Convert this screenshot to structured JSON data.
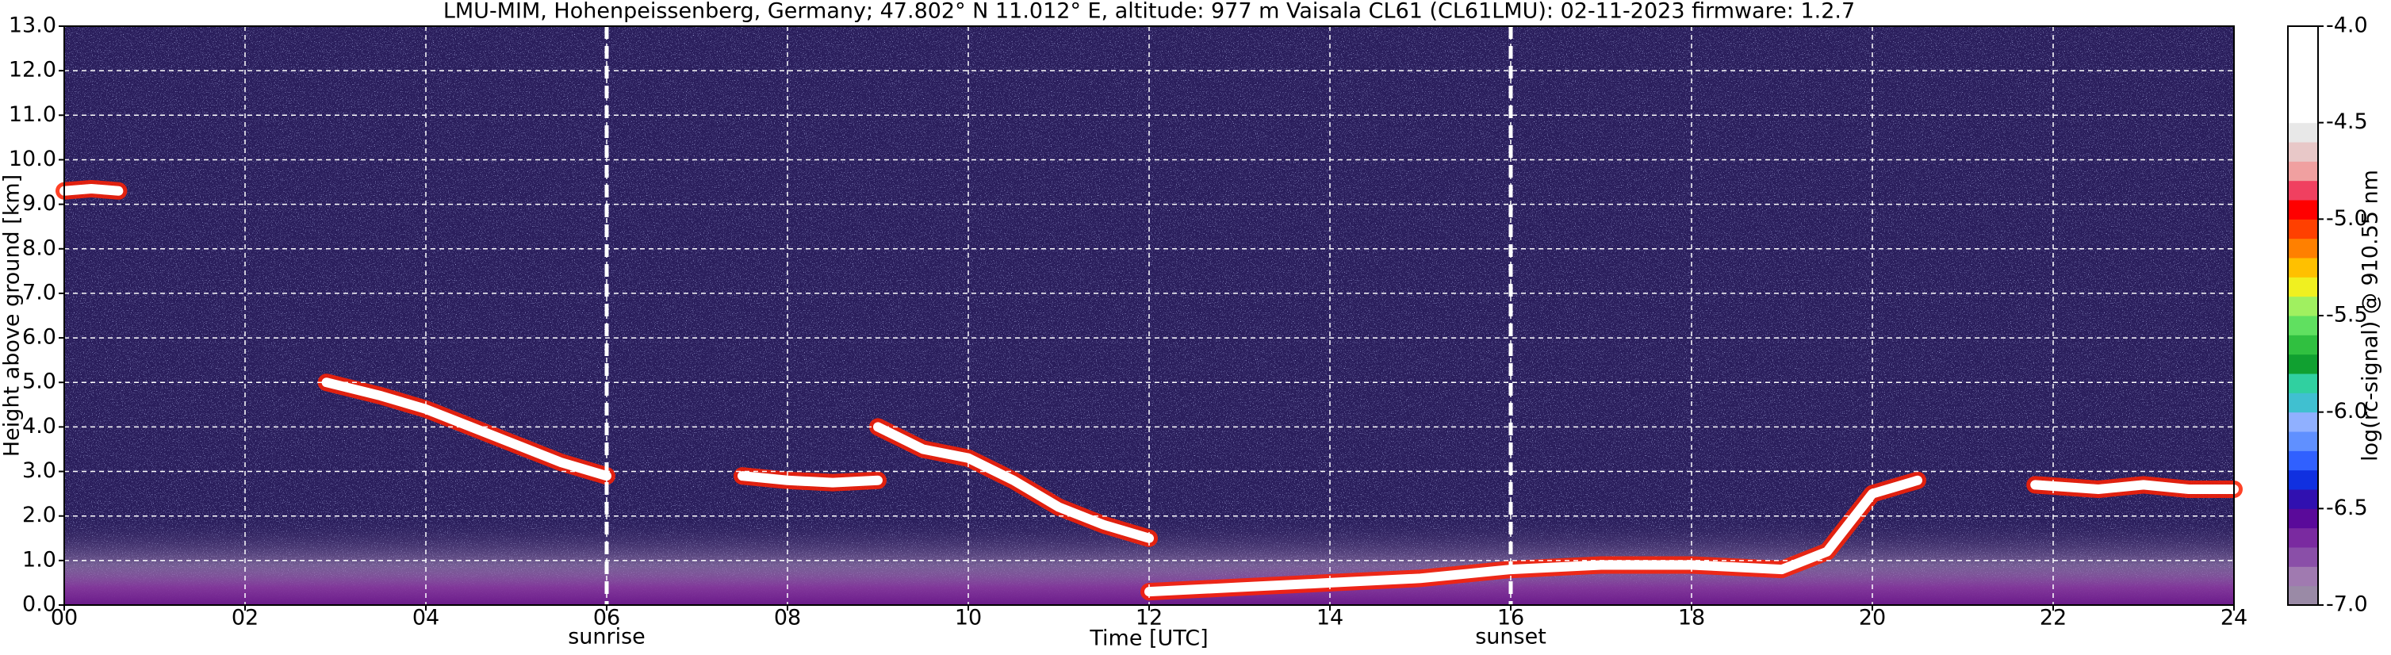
{
  "chart_data": {
    "type": "heatmap",
    "title": "LMU-MIM, Hohenpeissenberg, Germany; 47.802° N 11.012° E, altitude: 977 m    Vaisala CL61 (CL61LMU): 02-11-2023    firmware: 1.2.7",
    "x_label": "Time [UTC]",
    "y_label": "Height above ground [km]",
    "xlim": [
      0,
      24
    ],
    "xticks": [
      {
        "value": 0,
        "label": "00"
      },
      {
        "value": 2,
        "label": "02"
      },
      {
        "value": 4,
        "label": "04"
      },
      {
        "value": 6,
        "label": "06"
      },
      {
        "value": 8,
        "label": "08"
      },
      {
        "value": 10,
        "label": "10"
      },
      {
        "value": 12,
        "label": "12"
      },
      {
        "value": 14,
        "label": "14"
      },
      {
        "value": 16,
        "label": "16"
      },
      {
        "value": 18,
        "label": "18"
      },
      {
        "value": 20,
        "label": "20"
      },
      {
        "value": 22,
        "label": "22"
      },
      {
        "value": 24,
        "label": "24"
      }
    ],
    "ylim": [
      0,
      13
    ],
    "yticks": [
      {
        "value": 0,
        "label": "0.0"
      },
      {
        "value": 1,
        "label": "1.0"
      },
      {
        "value": 2,
        "label": "2.0"
      },
      {
        "value": 3,
        "label": "3.0"
      },
      {
        "value": 4,
        "label": "4.0"
      },
      {
        "value": 5,
        "label": "5.0"
      },
      {
        "value": 6,
        "label": "6.0"
      },
      {
        "value": 7,
        "label": "7.0"
      },
      {
        "value": 8,
        "label": "8.0"
      },
      {
        "value": 9,
        "label": "9.0"
      },
      {
        "value": 10,
        "label": "10.0"
      },
      {
        "value": 11,
        "label": "11.0"
      },
      {
        "value": 12,
        "label": "12.0"
      },
      {
        "value": 13,
        "label": "13.0"
      }
    ],
    "grid": true,
    "annotations": [
      {
        "x": 6,
        "label": "sunrise"
      },
      {
        "x": 16,
        "label": "sunset"
      }
    ],
    "series": [
      {
        "color": "#ffffff",
        "x": [
          0,
          0.3,
          0.6
        ],
        "values": [
          9.3,
          9.35,
          9.3
        ]
      },
      {
        "color": "#ffffff",
        "x": [
          2.9,
          3.5,
          4,
          4.5,
          5,
          5.5,
          6
        ],
        "values": [
          5.0,
          4.7,
          4.4,
          4.0,
          3.6,
          3.2,
          2.9
        ]
      },
      {
        "color": "#ffffff",
        "x": [
          7.5,
          8,
          8.5,
          9
        ],
        "values": [
          2.9,
          2.8,
          2.75,
          2.8
        ]
      },
      {
        "color": "#ffffff",
        "x": [
          9,
          9.5,
          10,
          10.5,
          11,
          11.5,
          12
        ],
        "values": [
          4.0,
          3.5,
          3.3,
          2.8,
          2.2,
          1.8,
          1.5
        ]
      },
      {
        "color": "#ffffff",
        "x": [
          12,
          13,
          14,
          15,
          16,
          17,
          18,
          19,
          19.5,
          20,
          20.5
        ],
        "values": [
          0.3,
          0.4,
          0.5,
          0.6,
          0.8,
          0.9,
          0.9,
          0.8,
          1.2,
          2.5,
          2.8
        ]
      },
      {
        "color": "#ffffff",
        "x": [
          21.8,
          22.5,
          23,
          23.5,
          24
        ],
        "values": [
          2.7,
          2.6,
          2.7,
          2.6,
          2.6
        ]
      }
    ],
    "colorbar": {
      "label": "log(rc-signal) @ 910.55 nm",
      "lim": [
        -7,
        -4
      ],
      "ticks": [
        {
          "value": -4,
          "label": "-4.0"
        },
        {
          "value": -4.5,
          "label": "-4.5"
        },
        {
          "value": -5,
          "label": "-5.0"
        },
        {
          "value": -5.5,
          "label": "-5.5"
        },
        {
          "value": -6,
          "label": "-6.0"
        },
        {
          "value": -6.5,
          "label": "-6.5"
        },
        {
          "value": -7,
          "label": "-7.0"
        }
      ],
      "colors": [
        "#9a8aa6",
        "#a07ab0",
        "#8a4fa8",
        "#7a2aa0",
        "#5a0a9a",
        "#3010b0",
        "#1030e0",
        "#3060ff",
        "#6090ff",
        "#90b0ff",
        "#40c0d0",
        "#30d0a0",
        "#10a030",
        "#30c040",
        "#60e060",
        "#a0f060",
        "#f0f020",
        "#ffc000",
        "#ff8000",
        "#ff4000",
        "#ff0000",
        "#f04060",
        "#f0a0a0",
        "#e8c8c8",
        "#e8e8e8",
        "#ffffff",
        "#ffffff",
        "#ffffff",
        "#ffffff",
        "#ffffff"
      ]
    }
  }
}
